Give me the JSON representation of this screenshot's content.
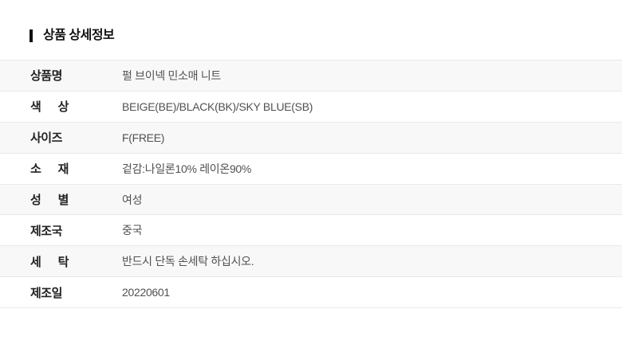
{
  "section": {
    "title": "상품 상세정보"
  },
  "table": {
    "rows": [
      {
        "label": "상품명",
        "value": "펄 브이넥 민소매 니트"
      },
      {
        "label": "색 상",
        "value": "BEIGE(BE)/BLACK(BK)/SKY BLUE(SB)"
      },
      {
        "label": "사이즈",
        "value": "F(FREE)"
      },
      {
        "label": "소 재",
        "value": "겉감:나일론10% 레이온90%"
      },
      {
        "label": "성 별",
        "value": "여성"
      },
      {
        "label": "제조국",
        "value": "중국"
      },
      {
        "label": "세 탁",
        "value": "반드시 단독 손세탁 하십시오."
      },
      {
        "label": "제조일",
        "value": "20220601"
      }
    ]
  },
  "colors": {
    "title_text": "#111111",
    "label_text": "#222222",
    "value_text": "#515151",
    "row_stripe": "#f8f8f8",
    "row_divider": "#e9e9e9",
    "background": "#ffffff"
  }
}
